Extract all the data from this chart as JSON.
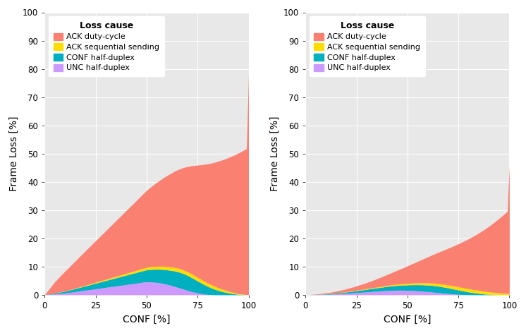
{
  "x_vals": [
    0,
    1,
    2,
    3,
    4,
    5,
    6,
    7,
    8,
    9,
    10,
    11,
    12,
    13,
    14,
    15,
    16,
    17,
    18,
    19,
    20,
    21,
    22,
    23,
    24,
    25,
    26,
    27,
    28,
    29,
    30,
    31,
    32,
    33,
    34,
    35,
    36,
    37,
    38,
    39,
    40,
    41,
    42,
    43,
    44,
    45,
    46,
    47,
    48,
    49,
    50,
    51,
    52,
    53,
    54,
    55,
    56,
    57,
    58,
    59,
    60,
    61,
    62,
    63,
    64,
    65,
    66,
    67,
    68,
    69,
    70,
    71,
    72,
    73,
    74,
    75,
    76,
    77,
    78,
    79,
    80,
    81,
    82,
    83,
    84,
    85,
    86,
    87,
    88,
    89,
    90,
    91,
    92,
    93,
    94,
    95,
    96,
    97,
    98,
    99,
    100
  ],
  "L_unc": [
    0,
    0.06,
    0.13,
    0.19,
    0.26,
    0.32,
    0.39,
    0.45,
    0.52,
    0.58,
    0.65,
    0.73,
    0.82,
    0.92,
    1.02,
    1.12,
    1.22,
    1.32,
    1.42,
    1.52,
    1.62,
    1.72,
    1.82,
    1.92,
    2.02,
    2.13,
    2.23,
    2.33,
    2.43,
    2.53,
    2.63,
    2.73,
    2.83,
    2.93,
    3.03,
    3.13,
    3.23,
    3.33,
    3.43,
    3.53,
    3.63,
    3.73,
    3.83,
    3.93,
    4.03,
    4.13,
    4.23,
    4.33,
    4.43,
    4.53,
    4.6,
    4.6,
    4.57,
    4.52,
    4.45,
    4.37,
    4.27,
    4.15,
    4.02,
    3.87,
    3.7,
    3.52,
    3.32,
    3.12,
    2.9,
    2.68,
    2.46,
    2.24,
    2.02,
    1.8,
    1.58,
    1.38,
    1.18,
    0.99,
    0.82,
    0.66,
    0.52,
    0.39,
    0.28,
    0.19,
    0.12,
    0.07,
    0.04,
    0.02,
    0.01,
    0.0,
    0.0,
    0.0,
    0.0,
    0.0,
    0.0,
    0.0,
    0.0,
    0.0,
    0.0,
    0.0,
    0.0,
    0.0,
    0.0,
    0.0,
    0.0
  ],
  "L_conf": [
    0,
    0.06,
    0.12,
    0.18,
    0.24,
    0.3,
    0.37,
    0.44,
    0.51,
    0.58,
    0.65,
    0.73,
    0.82,
    0.91,
    1.0,
    1.09,
    1.18,
    1.27,
    1.36,
    1.45,
    1.54,
    1.63,
    1.72,
    1.81,
    1.9,
    1.99,
    2.08,
    2.17,
    2.26,
    2.35,
    2.44,
    2.53,
    2.62,
    2.71,
    2.8,
    2.89,
    2.98,
    3.07,
    3.16,
    3.25,
    3.34,
    3.43,
    3.52,
    3.61,
    3.7,
    3.79,
    3.88,
    3.97,
    4.06,
    4.15,
    4.24,
    4.33,
    4.42,
    4.51,
    4.6,
    4.69,
    4.78,
    4.87,
    4.96,
    5.05,
    5.14,
    5.23,
    5.32,
    5.41,
    5.5,
    5.55,
    5.57,
    5.55,
    5.5,
    5.41,
    5.28,
    5.12,
    4.93,
    4.72,
    4.49,
    4.24,
    3.98,
    3.71,
    3.43,
    3.15,
    2.87,
    2.59,
    2.32,
    2.06,
    1.82,
    1.59,
    1.38,
    1.19,
    1.01,
    0.85,
    0.7,
    0.57,
    0.45,
    0.35,
    0.26,
    0.18,
    0.12,
    0.07,
    0.04,
    0.01,
    0.0
  ],
  "L_ack_seq": [
    0,
    0.01,
    0.02,
    0.02,
    0.03,
    0.04,
    0.05,
    0.06,
    0.07,
    0.08,
    0.09,
    0.1,
    0.12,
    0.13,
    0.15,
    0.16,
    0.18,
    0.19,
    0.21,
    0.22,
    0.24,
    0.26,
    0.28,
    0.3,
    0.32,
    0.34,
    0.36,
    0.38,
    0.4,
    0.42,
    0.44,
    0.46,
    0.48,
    0.5,
    0.52,
    0.54,
    0.57,
    0.59,
    0.61,
    0.64,
    0.66,
    0.68,
    0.71,
    0.73,
    0.76,
    0.78,
    0.81,
    0.83,
    0.86,
    0.89,
    0.91,
    0.94,
    0.97,
    0.99,
    1.02,
    1.04,
    1.07,
    1.09,
    1.12,
    1.14,
    1.17,
    1.19,
    1.21,
    1.23,
    1.25,
    1.27,
    1.28,
    1.3,
    1.31,
    1.32,
    1.33,
    1.33,
    1.33,
    1.33,
    1.32,
    1.31,
    1.29,
    1.27,
    1.25,
    1.22,
    1.19,
    1.15,
    1.11,
    1.07,
    1.02,
    0.97,
    0.91,
    0.85,
    0.78,
    0.71,
    0.64,
    0.57,
    0.49,
    0.42,
    0.35,
    0.28,
    0.22,
    0.16,
    0.11,
    0.06,
    0.02
  ],
  "L_ack_duty": [
    0,
    0.8,
    1.6,
    2.4,
    3.2,
    4.0,
    4.6,
    5.2,
    5.8,
    6.4,
    7.0,
    7.52,
    8.04,
    8.56,
    9.08,
    9.6,
    10.12,
    10.64,
    11.16,
    11.68,
    12.2,
    12.7,
    13.2,
    13.7,
    14.2,
    14.7,
    15.2,
    15.7,
    16.2,
    16.7,
    17.2,
    17.7,
    18.2,
    18.7,
    19.2,
    19.7,
    20.2,
    20.7,
    21.2,
    21.7,
    22.2,
    22.7,
    23.2,
    23.7,
    24.2,
    24.7,
    25.2,
    25.7,
    26.2,
    26.7,
    27.2,
    27.7,
    28.2,
    28.7,
    29.2,
    29.7,
    30.2,
    30.7,
    31.2,
    31.7,
    32.2,
    32.7,
    33.2,
    33.7,
    34.2,
    34.7,
    35.2,
    35.7,
    36.2,
    36.7,
    37.2,
    37.7,
    38.2,
    38.7,
    39.2,
    39.7,
    40.2,
    40.7,
    41.2,
    41.7,
    42.2,
    42.7,
    43.2,
    43.7,
    44.2,
    44.7,
    45.2,
    45.7,
    46.2,
    46.7,
    47.2,
    47.7,
    48.2,
    48.7,
    49.2,
    49.7,
    50.2,
    50.7,
    51.2,
    51.7,
    77.8
  ],
  "R_unc": [
    0,
    0.01,
    0.02,
    0.03,
    0.05,
    0.06,
    0.08,
    0.1,
    0.12,
    0.14,
    0.16,
    0.19,
    0.22,
    0.25,
    0.28,
    0.32,
    0.36,
    0.4,
    0.44,
    0.48,
    0.53,
    0.57,
    0.62,
    0.67,
    0.72,
    0.77,
    0.82,
    0.87,
    0.92,
    0.97,
    1.02,
    1.07,
    1.12,
    1.17,
    1.22,
    1.27,
    1.32,
    1.37,
    1.42,
    1.47,
    1.52,
    1.55,
    1.58,
    1.6,
    1.62,
    1.63,
    1.63,
    1.62,
    1.61,
    1.59,
    1.57,
    1.54,
    1.51,
    1.47,
    1.43,
    1.39,
    1.34,
    1.29,
    1.23,
    1.17,
    1.11,
    1.05,
    0.98,
    0.91,
    0.84,
    0.77,
    0.7,
    0.63,
    0.56,
    0.5,
    0.43,
    0.37,
    0.31,
    0.26,
    0.21,
    0.17,
    0.13,
    0.1,
    0.07,
    0.05,
    0.04,
    0.03,
    0.02,
    0.01,
    0.01,
    0.01,
    0.0,
    0.0,
    0.0,
    0.0,
    0.0,
    0.0,
    0.0,
    0.0,
    0.0,
    0.0,
    0.0,
    0.0,
    0.0,
    0.0,
    0.0
  ],
  "R_conf": [
    0,
    0.01,
    0.02,
    0.03,
    0.04,
    0.05,
    0.07,
    0.09,
    0.11,
    0.13,
    0.15,
    0.17,
    0.2,
    0.23,
    0.26,
    0.29,
    0.32,
    0.35,
    0.39,
    0.43,
    0.47,
    0.51,
    0.55,
    0.59,
    0.64,
    0.69,
    0.74,
    0.79,
    0.84,
    0.89,
    0.94,
    0.99,
    1.04,
    1.09,
    1.14,
    1.19,
    1.24,
    1.29,
    1.34,
    1.39,
    1.44,
    1.49,
    1.54,
    1.59,
    1.64,
    1.69,
    1.74,
    1.79,
    1.84,
    1.89,
    1.94,
    1.99,
    2.04,
    2.09,
    2.14,
    2.18,
    2.22,
    2.26,
    2.29,
    2.32,
    2.34,
    2.36,
    2.36,
    2.35,
    2.33,
    2.3,
    2.26,
    2.21,
    2.15,
    2.09,
    2.01,
    1.93,
    1.84,
    1.75,
    1.65,
    1.55,
    1.44,
    1.33,
    1.22,
    1.11,
    1.0,
    0.89,
    0.79,
    0.69,
    0.59,
    0.5,
    0.42,
    0.34,
    0.27,
    0.21,
    0.16,
    0.11,
    0.08,
    0.05,
    0.03,
    0.02,
    0.01,
    0.01,
    0.0,
    0.0,
    0.0
  ],
  "R_ack_seq": [
    0,
    0.0,
    0.0,
    0.01,
    0.01,
    0.01,
    0.02,
    0.02,
    0.03,
    0.03,
    0.04,
    0.04,
    0.05,
    0.05,
    0.06,
    0.07,
    0.08,
    0.09,
    0.1,
    0.11,
    0.12,
    0.13,
    0.14,
    0.15,
    0.16,
    0.17,
    0.18,
    0.19,
    0.2,
    0.21,
    0.22,
    0.23,
    0.24,
    0.26,
    0.27,
    0.28,
    0.3,
    0.31,
    0.33,
    0.34,
    0.36,
    0.37,
    0.39,
    0.41,
    0.43,
    0.45,
    0.47,
    0.49,
    0.51,
    0.53,
    0.55,
    0.57,
    0.59,
    0.62,
    0.64,
    0.66,
    0.69,
    0.71,
    0.74,
    0.76,
    0.79,
    0.81,
    0.84,
    0.86,
    0.89,
    0.91,
    0.94,
    0.96,
    0.99,
    1.01,
    1.03,
    1.05,
    1.07,
    1.09,
    1.11,
    1.12,
    1.13,
    1.14,
    1.14,
    1.14,
    1.14,
    1.13,
    1.12,
    1.1,
    1.08,
    1.06,
    1.04,
    1.01,
    0.98,
    0.95,
    0.92,
    0.88,
    0.84,
    0.8,
    0.75,
    0.7,
    0.65,
    0.59,
    0.53,
    0.47,
    0.41
  ],
  "R_ack_duty": [
    0,
    0.02,
    0.04,
    0.06,
    0.09,
    0.12,
    0.15,
    0.19,
    0.23,
    0.27,
    0.32,
    0.37,
    0.42,
    0.48,
    0.54,
    0.6,
    0.67,
    0.74,
    0.82,
    0.9,
    0.99,
    1.08,
    1.18,
    1.28,
    1.39,
    1.5,
    1.62,
    1.74,
    1.87,
    2.0,
    2.14,
    2.28,
    2.43,
    2.59,
    2.75,
    2.92,
    3.09,
    3.27,
    3.46,
    3.65,
    3.85,
    4.05,
    4.26,
    4.48,
    4.7,
    4.93,
    5.17,
    5.41,
    5.66,
    5.92,
    6.18,
    6.45,
    6.73,
    7.01,
    7.3,
    7.6,
    7.91,
    8.22,
    8.54,
    8.87,
    9.21,
    9.55,
    9.9,
    10.26,
    10.63,
    11.01,
    11.39,
    11.78,
    12.18,
    12.59,
    13.01,
    13.43,
    13.87,
    14.31,
    14.76,
    15.22,
    15.69,
    16.17,
    16.65,
    17.15,
    17.65,
    18.16,
    18.68,
    19.21,
    19.75,
    20.3,
    20.86,
    21.43,
    22.01,
    22.6,
    23.2,
    23.81,
    24.43,
    25.06,
    25.7,
    26.35,
    27.01,
    27.68,
    28.36,
    29.05,
    45.5
  ],
  "colors": {
    "unc": "#CC99FF",
    "conf": "#00B0C0",
    "ack_seq": "#FFDD00",
    "ack_duty": "#FA8072"
  },
  "legend_labels": [
    "ACK duty-cycle",
    "ACK sequential sending",
    "CONF half-duplex",
    "UNC half-duplex"
  ],
  "xlabel": "CONF [%]",
  "ylabel": "Frame Loss [%]",
  "legend_title": "Loss cause",
  "bg_color": "#E8E8E8",
  "ylim": [
    0,
    100
  ],
  "xlim": [
    0,
    100
  ],
  "yticks": [
    0,
    10,
    20,
    30,
    40,
    50,
    60,
    70,
    80,
    90,
    100
  ],
  "xticks": [
    0,
    25,
    50,
    75,
    100
  ]
}
